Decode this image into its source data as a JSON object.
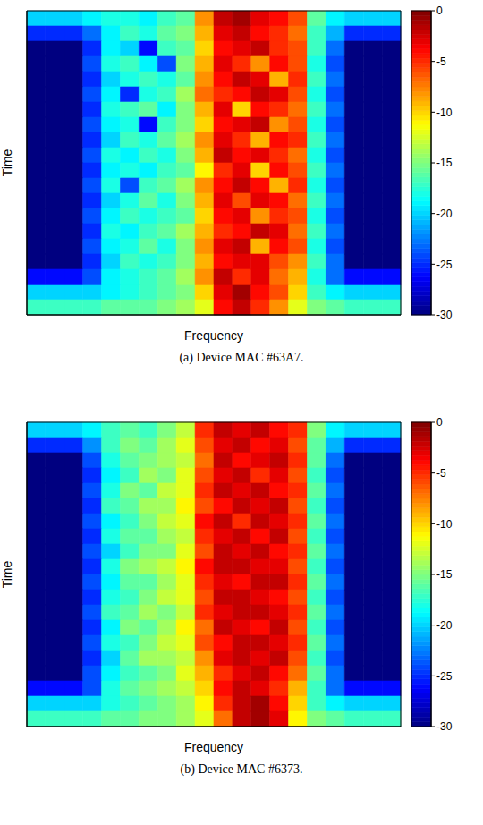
{
  "chart_data": [
    {
      "type": "heatmap",
      "x_label": "Frequency",
      "y_label": "Time",
      "caption": "(a) Device MAC #63A7.",
      "tick_labels": false,
      "colorbar": {
        "lim": [
          -30,
          0
        ],
        "ticks": [
          0,
          -5,
          -10,
          -15,
          -20,
          -25,
          -30
        ]
      },
      "cells": [
        [
          -20,
          -20,
          -20,
          -19,
          -18,
          -18,
          -19,
          -17,
          -16,
          -8,
          -2,
          -1,
          -3,
          -4,
          -6,
          -16,
          -19,
          -20,
          -20,
          -20
        ],
        [
          -25,
          -25,
          -25,
          -23,
          -19,
          -17,
          -18,
          -16,
          -15,
          -9,
          -3,
          -2,
          -4,
          -5,
          -7,
          -17,
          -21,
          -25,
          -25,
          -25
        ],
        [
          -30,
          -30,
          -30,
          -25,
          -19,
          -20,
          -26,
          -17,
          -16,
          -10,
          -4,
          -3,
          -2,
          -5,
          -6,
          -17,
          -23,
          -30,
          -30,
          -30
        ],
        [
          -30,
          -30,
          -30,
          -24,
          -18,
          -17,
          -19,
          -24,
          -15,
          -9,
          -3,
          -5,
          -8,
          -4,
          -6,
          -18,
          -24,
          -30,
          -30,
          -30
        ],
        [
          -30,
          -30,
          -30,
          -25,
          -20,
          -18,
          -17,
          -18,
          -16,
          -8,
          -4,
          -2,
          -3,
          -9,
          -5,
          -17,
          -23,
          -30,
          -30,
          -30
        ],
        [
          -30,
          -30,
          -30,
          -24,
          -19,
          -25,
          -18,
          -17,
          -14,
          -7,
          -5,
          -4,
          -2,
          -3,
          -6,
          -18,
          -24,
          -30,
          -30,
          -30
        ],
        [
          -30,
          -30,
          -30,
          -25,
          -18,
          -17,
          -16,
          -19,
          -15,
          -9,
          -3,
          -10,
          -4,
          -5,
          -7,
          -17,
          -23,
          -30,
          -30,
          -30
        ],
        [
          -30,
          -30,
          -30,
          -24,
          -19,
          -18,
          -26,
          -17,
          -15,
          -10,
          -4,
          -3,
          -2,
          -8,
          -6,
          -18,
          -24,
          -30,
          -30,
          -30
        ],
        [
          -30,
          -30,
          -30,
          -25,
          -20,
          -17,
          -18,
          -16,
          -14,
          -8,
          -3,
          -5,
          -9,
          -4,
          -5,
          -17,
          -23,
          -30,
          -30,
          -30
        ],
        [
          -30,
          -30,
          -30,
          -24,
          -18,
          -19,
          -17,
          -18,
          -15,
          -9,
          -2,
          -4,
          -3,
          -5,
          -7,
          -18,
          -24,
          -30,
          -30,
          -30
        ],
        [
          -30,
          -30,
          -30,
          -25,
          -19,
          -18,
          -19,
          -17,
          -16,
          -11,
          -5,
          -3,
          -10,
          -4,
          -6,
          -17,
          -23,
          -30,
          -30,
          -30
        ],
        [
          -30,
          -30,
          -30,
          -24,
          -18,
          -24,
          -17,
          -16,
          -14,
          -8,
          -4,
          -2,
          -4,
          -9,
          -5,
          -18,
          -24,
          -30,
          -30,
          -30
        ],
        [
          -30,
          -30,
          -30,
          -25,
          -20,
          -18,
          -16,
          -18,
          -15,
          -9,
          -3,
          -6,
          -3,
          -4,
          -7,
          -17,
          -23,
          -30,
          -30,
          -30
        ],
        [
          -30,
          -30,
          -30,
          -24,
          -19,
          -17,
          -18,
          -17,
          -16,
          -10,
          -4,
          -3,
          -8,
          -5,
          -6,
          -18,
          -24,
          -30,
          -30,
          -30
        ],
        [
          -30,
          -30,
          -30,
          -25,
          -18,
          -19,
          -17,
          -16,
          -14,
          -9,
          -5,
          -4,
          -2,
          -3,
          -7,
          -17,
          -23,
          -30,
          -30,
          -30
        ],
        [
          -30,
          -30,
          -30,
          -24,
          -19,
          -18,
          -16,
          -18,
          -15,
          -8,
          -3,
          -2,
          -9,
          -4,
          -6,
          -18,
          -24,
          -30,
          -30,
          -30
        ],
        [
          -30,
          -30,
          -30,
          -25,
          -20,
          -17,
          -18,
          -17,
          -15,
          -9,
          -4,
          -3,
          -3,
          -6,
          -8,
          -17,
          -23,
          -30,
          -30,
          -30
        ],
        [
          -26,
          -26,
          -26,
          -24,
          -19,
          -18,
          -17,
          -16,
          -14,
          -8,
          -2,
          -5,
          -3,
          -7,
          -9,
          -18,
          -23,
          -26,
          -26,
          -26
        ],
        [
          -20,
          -20,
          -20,
          -20,
          -19,
          -18,
          -17,
          -16,
          -15,
          -10,
          -3,
          -1,
          -4,
          -6,
          -10,
          -17,
          -19,
          -20,
          -20,
          -20
        ],
        [
          -17,
          -17,
          -17,
          -17,
          -16,
          -16,
          -16,
          -15,
          -14,
          -12,
          -4,
          -2,
          -5,
          -8,
          -12,
          -15,
          -16,
          -17,
          -17,
          -17
        ]
      ]
    },
    {
      "type": "heatmap",
      "x_label": "Frequency",
      "y_label": "Time",
      "caption": "(b) Device MAC #6373.",
      "tick_labels": false,
      "colorbar": {
        "lim": [
          -30,
          0
        ],
        "ticks": [
          0,
          -5,
          -10,
          -15,
          -20,
          -25,
          -30
        ]
      },
      "cells": [
        [
          -20,
          -20,
          -20,
          -19,
          -17,
          -16,
          -17,
          -15,
          -13,
          -5,
          -2,
          -3,
          -2,
          -4,
          -5,
          -15,
          -19,
          -20,
          -20,
          -20
        ],
        [
          -25,
          -25,
          -25,
          -22,
          -17,
          -15,
          -16,
          -14,
          -12,
          -6,
          -3,
          -2,
          -4,
          -3,
          -6,
          -16,
          -21,
          -25,
          -25,
          -25
        ],
        [
          -30,
          -30,
          -30,
          -24,
          -18,
          -16,
          -15,
          -14,
          -13,
          -7,
          -2,
          -4,
          -3,
          -2,
          -5,
          -16,
          -23,
          -30,
          -30,
          -30
        ],
        [
          -30,
          -30,
          -30,
          -25,
          -19,
          -17,
          -14,
          -15,
          -12,
          -6,
          -3,
          -2,
          -5,
          -3,
          -6,
          -17,
          -24,
          -30,
          -30,
          -30
        ],
        [
          -30,
          -30,
          -30,
          -24,
          -18,
          -15,
          -16,
          -13,
          -12,
          -5,
          -2,
          -3,
          -2,
          -4,
          -5,
          -16,
          -23,
          -30,
          -30,
          -30
        ],
        [
          -30,
          -30,
          -30,
          -25,
          -17,
          -16,
          -14,
          -14,
          -11,
          -6,
          -4,
          -2,
          -3,
          -2,
          -6,
          -17,
          -24,
          -30,
          -30,
          -30
        ],
        [
          -30,
          -30,
          -30,
          -24,
          -19,
          -17,
          -15,
          -13,
          -12,
          -4,
          -2,
          -5,
          -2,
          -3,
          -5,
          -16,
          -23,
          -30,
          -30,
          -30
        ],
        [
          -30,
          -30,
          -30,
          -25,
          -18,
          -16,
          -16,
          -14,
          -13,
          -5,
          -3,
          -2,
          -4,
          -2,
          -6,
          -17,
          -24,
          -30,
          -30,
          -30
        ],
        [
          -30,
          -30,
          -30,
          -24,
          -20,
          -17,
          -15,
          -15,
          -12,
          -6,
          -2,
          -3,
          -2,
          -4,
          -5,
          -16,
          -23,
          -30,
          -30,
          -30
        ],
        [
          -30,
          -30,
          -30,
          -25,
          -18,
          -15,
          -14,
          -13,
          -11,
          -4,
          -2,
          -2,
          -3,
          -3,
          -6,
          -17,
          -24,
          -30,
          -30,
          -30
        ],
        [
          -30,
          -30,
          -30,
          -24,
          -19,
          -16,
          -16,
          -14,
          -12,
          -5,
          -3,
          -4,
          -2,
          -2,
          -5,
          -16,
          -23,
          -30,
          -30,
          -30
        ],
        [
          -30,
          -30,
          -30,
          -25,
          -18,
          -17,
          -15,
          -13,
          -12,
          -6,
          -2,
          -2,
          -3,
          -4,
          -6,
          -17,
          -24,
          -30,
          -30,
          -30
        ],
        [
          -30,
          -30,
          -30,
          -24,
          -17,
          -16,
          -14,
          -15,
          -13,
          -5,
          -3,
          -2,
          -2,
          -3,
          -5,
          -16,
          -23,
          -30,
          -30,
          -30
        ],
        [
          -30,
          -30,
          -30,
          -25,
          -19,
          -15,
          -16,
          -14,
          -11,
          -7,
          -2,
          -3,
          -4,
          -2,
          -6,
          -17,
          -24,
          -30,
          -30,
          -30
        ],
        [
          -30,
          -30,
          -30,
          -24,
          -18,
          -17,
          -15,
          -13,
          -12,
          -6,
          -4,
          -2,
          -2,
          -3,
          -5,
          -16,
          -23,
          -30,
          -30,
          -30
        ],
        [
          -30,
          -30,
          -30,
          -25,
          -20,
          -16,
          -14,
          -14,
          -13,
          -8,
          -3,
          -2,
          -3,
          -2,
          -6,
          -17,
          -24,
          -30,
          -30,
          -30
        ],
        [
          -30,
          -30,
          -30,
          -24,
          -19,
          -17,
          -16,
          -15,
          -12,
          -9,
          -5,
          -3,
          -2,
          -4,
          -7,
          -16,
          -23,
          -30,
          -30,
          -30
        ],
        [
          -26,
          -26,
          -26,
          -24,
          -18,
          -16,
          -15,
          -14,
          -13,
          -10,
          -4,
          -2,
          -3,
          -5,
          -9,
          -17,
          -23,
          -26,
          -26,
          -26
        ],
        [
          -20,
          -20,
          -20,
          -20,
          -18,
          -17,
          -16,
          -15,
          -14,
          -11,
          -5,
          -2,
          -1,
          -4,
          -10,
          -17,
          -19,
          -20,
          -20,
          -20
        ],
        [
          -17,
          -17,
          -17,
          -17,
          -16,
          -16,
          -15,
          -15,
          -14,
          -12,
          -7,
          -2,
          -1,
          -3,
          -11,
          -15,
          -16,
          -17,
          -17,
          -17
        ]
      ]
    }
  ]
}
